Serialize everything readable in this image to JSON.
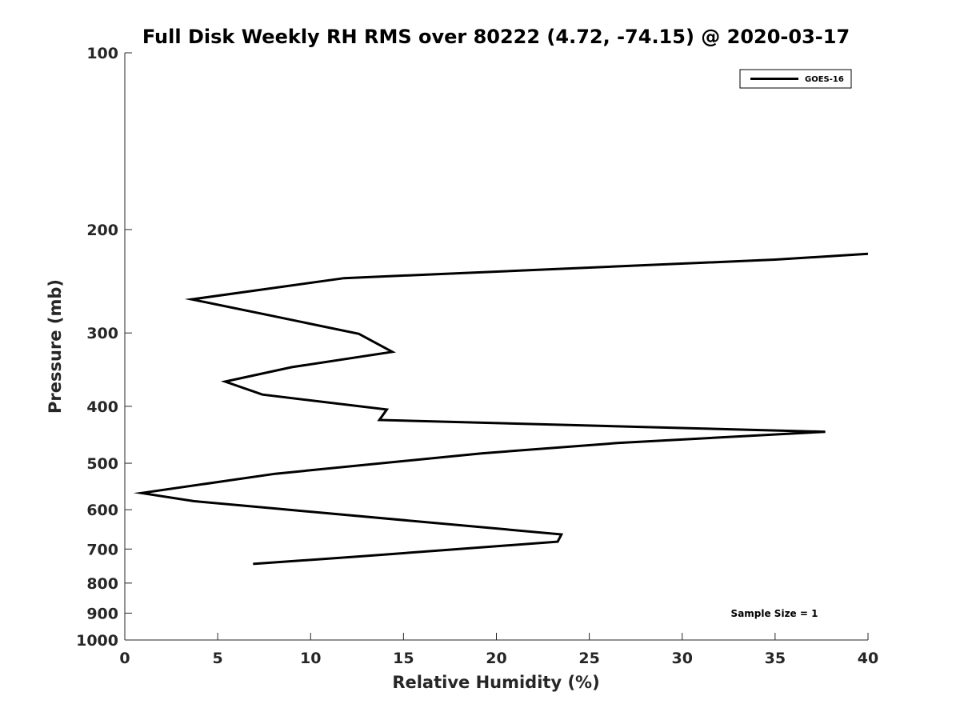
{
  "chart_data": {
    "type": "line",
    "title": "Full Disk Weekly RH RMS over 80222 (4.72, -74.15) @ 2020-03-17",
    "xlabel": "Relative Humidity (%)",
    "ylabel": "Pressure (mb)",
    "xlim": [
      0,
      40
    ],
    "ylim": [
      100,
      1000
    ],
    "y_scale": "log",
    "y_reversed": true,
    "grid": false,
    "legend_position": "top-right",
    "x_ticks": [
      0,
      5,
      10,
      15,
      20,
      25,
      30,
      35,
      40
    ],
    "x_tick_labels": [
      "0",
      "5",
      "10",
      "15",
      "20",
      "25",
      "30",
      "35",
      "40"
    ],
    "y_ticks": [
      100,
      200,
      300,
      400,
      500,
      600,
      700,
      800,
      900,
      1000
    ],
    "y_tick_labels": [
      "100",
      "200",
      "300",
      "400",
      "500",
      "600",
      "700",
      "800",
      "900",
      "1000"
    ],
    "series": [
      {
        "name": "GOES-16",
        "color": "#000000",
        "points": [
          {
            "x": 40.0,
            "y": 220
          },
          {
            "x": 35.0,
            "y": 225
          },
          {
            "x": 11.8,
            "y": 242
          },
          {
            "x": 3.6,
            "y": 263
          },
          {
            "x": 7.8,
            "y": 280
          },
          {
            "x": 12.6,
            "y": 301
          },
          {
            "x": 14.4,
            "y": 323
          },
          {
            "x": 9.0,
            "y": 343
          },
          {
            "x": 5.4,
            "y": 363
          },
          {
            "x": 7.4,
            "y": 382
          },
          {
            "x": 14.1,
            "y": 405
          },
          {
            "x": 13.7,
            "y": 422
          },
          {
            "x": 37.7,
            "y": 442
          },
          {
            "x": 26.5,
            "y": 462
          },
          {
            "x": 19.2,
            "y": 481
          },
          {
            "x": 8.1,
            "y": 521
          },
          {
            "x": 0.9,
            "y": 562
          },
          {
            "x": 3.7,
            "y": 580
          },
          {
            "x": 23.5,
            "y": 661
          },
          {
            "x": 23.3,
            "y": 680
          },
          {
            "x": 18.0,
            "y": 700
          },
          {
            "x": 12.5,
            "y": 721
          },
          {
            "x": 6.9,
            "y": 742
          }
        ]
      }
    ],
    "annotations": [
      {
        "text": "Sample Size = 1",
        "position": "bottom-right"
      }
    ]
  }
}
